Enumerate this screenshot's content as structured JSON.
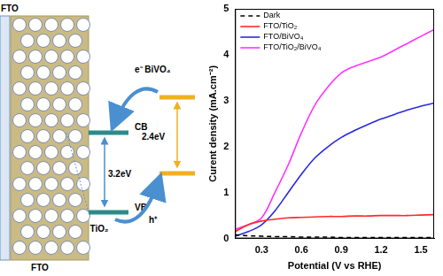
{
  "chart_data": {
    "type": "line",
    "x_label": "Potential (V vs RHE)",
    "y_label": "Curent density (mA.cm⁻²)",
    "x": [
      0.1,
      0.2,
      0.3,
      0.4,
      0.5,
      0.6,
      0.7,
      0.8,
      0.9,
      1.0,
      1.1,
      1.2,
      1.3,
      1.4,
      1.5,
      1.6
    ],
    "series": [
      {
        "name": "Dark",
        "color": "#000000",
        "line_style": "dashed",
        "values": [
          0.08,
          0.06,
          0.05,
          0.04,
          0.04,
          0.03,
          0.03,
          0.03,
          0.02,
          0.02,
          0.02,
          0.02,
          0.02,
          0.02,
          0.02,
          0.02
        ]
      },
      {
        "name": "FTO/TiO₂",
        "color": "#ff2a2a",
        "line_style": "solid",
        "values": [
          0.15,
          0.3,
          0.38,
          0.42,
          0.45,
          0.46,
          0.47,
          0.48,
          0.48,
          0.49,
          0.49,
          0.5,
          0.5,
          0.5,
          0.51,
          0.52
        ]
      },
      {
        "name": "FTO/BiVO₄",
        "color": "#2a2adf",
        "line_style": "solid",
        "values": [
          0.05,
          0.15,
          0.3,
          0.6,
          1.0,
          1.4,
          1.75,
          2.0,
          2.2,
          2.35,
          2.48,
          2.6,
          2.7,
          2.8,
          2.88,
          2.95
        ]
      },
      {
        "name": "FTO/TiO₂/BiVO₄",
        "color": "#ff33ff",
        "line_style": "solid",
        "values": [
          0.2,
          0.3,
          0.45,
          1.0,
          1.6,
          2.3,
          2.9,
          3.3,
          3.6,
          3.75,
          3.85,
          3.95,
          4.1,
          4.25,
          4.4,
          4.55
        ]
      }
    ],
    "xlim": [
      0.1,
      1.6
    ],
    "ylim": [
      0,
      5
    ],
    "xticks": [
      0.3,
      0.6,
      0.9,
      1.2,
      1.5
    ],
    "yticks": [
      0,
      1,
      2,
      3,
      4,
      5
    ],
    "grid": false,
    "legend": "upper left"
  },
  "diagram": {
    "substrate_labels": [
      "FTO",
      "FTO"
    ],
    "tio2": {
      "label": "TiO₂",
      "band_gap": "3.2eV"
    },
    "bivo4": {
      "label": "e⁻ BiVO₄",
      "band_gap": "2.4eV"
    },
    "bands": {
      "cb": "CB",
      "vb": "VB"
    },
    "hole_label": "h⁺"
  }
}
